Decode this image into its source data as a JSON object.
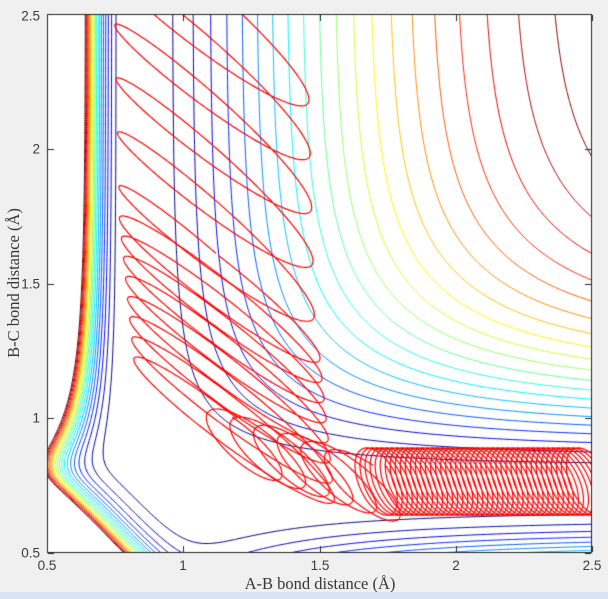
{
  "window": {
    "background": "#f0f0f0",
    "plot_background": "#ffffff",
    "bottom_strip_color": "#d7e3f3"
  },
  "chart_data": {
    "type": "contour",
    "subtype": "potential-energy-surface-with-trajectory",
    "title": "",
    "xlabel": "A-B bond distance (Å)",
    "ylabel": "B-C bond distance (Å)",
    "xlim": [
      0.5,
      2.5
    ],
    "ylim": [
      0.5,
      2.5
    ],
    "x_ticks": [
      "0.5",
      "1",
      "1.5",
      "2",
      "2.5"
    ],
    "x_tick_values": [
      0.5,
      1,
      1.5,
      2,
      2.5
    ],
    "y_ticks": [
      "0.5",
      "1",
      "1.5",
      "2",
      "2.5"
    ],
    "y_tick_values": [
      0.5,
      1,
      1.5,
      2,
      2.5
    ],
    "grid": false,
    "legend": null,
    "colormap": "jet",
    "contour_levels": {
      "count": 20,
      "min": -4.55,
      "max": -1.0
    },
    "axis_color": "#262626",
    "tick_label_color": "#3c3c3c",
    "axis_label_color": "#383838",
    "tick_length": 6,
    "surface_model": {
      "D": 4.75,
      "morse_AB": {
        "r0": 0.8,
        "a_inner": 4.0,
        "a_outer": 1.43
      },
      "morse_BC": {
        "r0": 0.75,
        "a_inner": 1.9,
        "a_outer": 3.0
      },
      "coupling_scale": 4.75,
      "corner_repulsion": {
        "amp": 3.0,
        "k": 12.0,
        "s0": 1.3
      }
    },
    "trajectory": {
      "color": "#ff0000",
      "line_width": 1.2,
      "segments": [
        {
          "t0": -2.2,
          "t1": 31.4,
          "cx": 1.1,
          "dx": 0.0008,
          "ax": 0.36,
          "phx": 0.0,
          "cy": 2.52,
          "dy": -0.0318,
          "ay": 0.3,
          "phy": 2.85
        },
        {
          "t0": 0,
          "t1": 50.3,
          "cx": 1.13,
          "dx": 0.0012,
          "ax": 0.37,
          "phx": 0.0,
          "cy": 1.52,
          "dy": -0.0119,
          "ay": 0.29,
          "phy": 2.85
        },
        {
          "t0": 0,
          "t1": 37.7,
          "cx": 1.18,
          "dx": 0.0138,
          "ax": 0.16,
          "phx": 0.0,
          "cy": 0.92,
          "dy": -0.0048,
          "ay": 0.14,
          "phy": 2.5
        },
        {
          "t0": 0,
          "t1": 270,
          "cx": 1.7,
          "dx": 0.00294,
          "ax": 0.082,
          "phx": 0.5,
          "cy": 0.765,
          "dy": 0.0,
          "ay": 0.125,
          "phy": 2.6
        }
      ]
    }
  }
}
